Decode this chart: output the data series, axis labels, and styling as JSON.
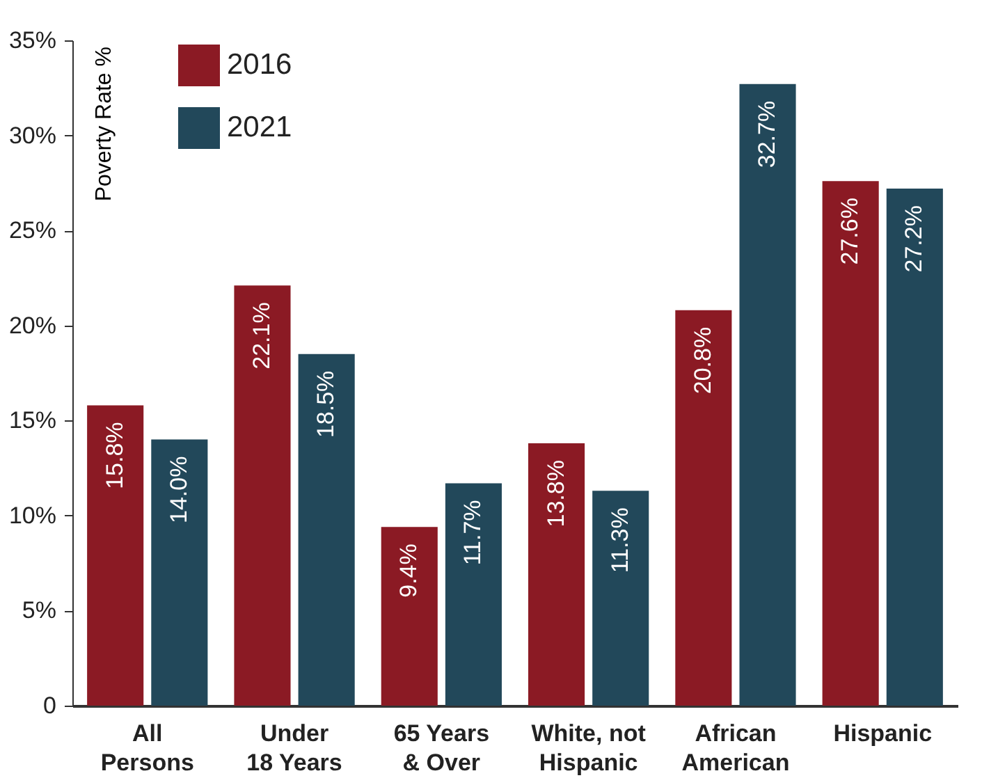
{
  "chart_data": {
    "type": "bar",
    "ylabel": "Poverty Rate %",
    "categories": [
      "All Persons",
      "Under 18 Years",
      "65 Years & Over",
      "White, not Hispanic",
      "African American",
      "Hispanic"
    ],
    "series": [
      {
        "name": "2016",
        "color": "#8b1a24",
        "values": [
          15.8,
          22.1,
          9.4,
          13.8,
          20.8,
          27.6
        ],
        "value_labels": [
          "15.8%",
          "22.1%",
          "9.4%",
          "13.8%",
          "20.8%",
          "27.6%"
        ]
      },
      {
        "name": "2021",
        "color": "#22485a",
        "values": [
          14.0,
          18.5,
          11.7,
          11.3,
          32.7,
          27.2
        ],
        "value_labels": [
          "14.0%",
          "18.5%",
          "11.7%",
          "11.3%",
          "32.7%",
          "27.2%"
        ]
      }
    ],
    "ylim": [
      0,
      35
    ],
    "yticks": [
      {
        "value": 0,
        "label": "0"
      },
      {
        "value": 5,
        "label": "5%"
      },
      {
        "value": 10,
        "label": "10%"
      },
      {
        "value": 15,
        "label": "15%"
      },
      {
        "value": 20,
        "label": "20%"
      },
      {
        "value": 25,
        "label": "25%"
      },
      {
        "value": 30,
        "label": "30%"
      },
      {
        "value": 35,
        "label": "35%"
      }
    ],
    "legend": "top left"
  }
}
